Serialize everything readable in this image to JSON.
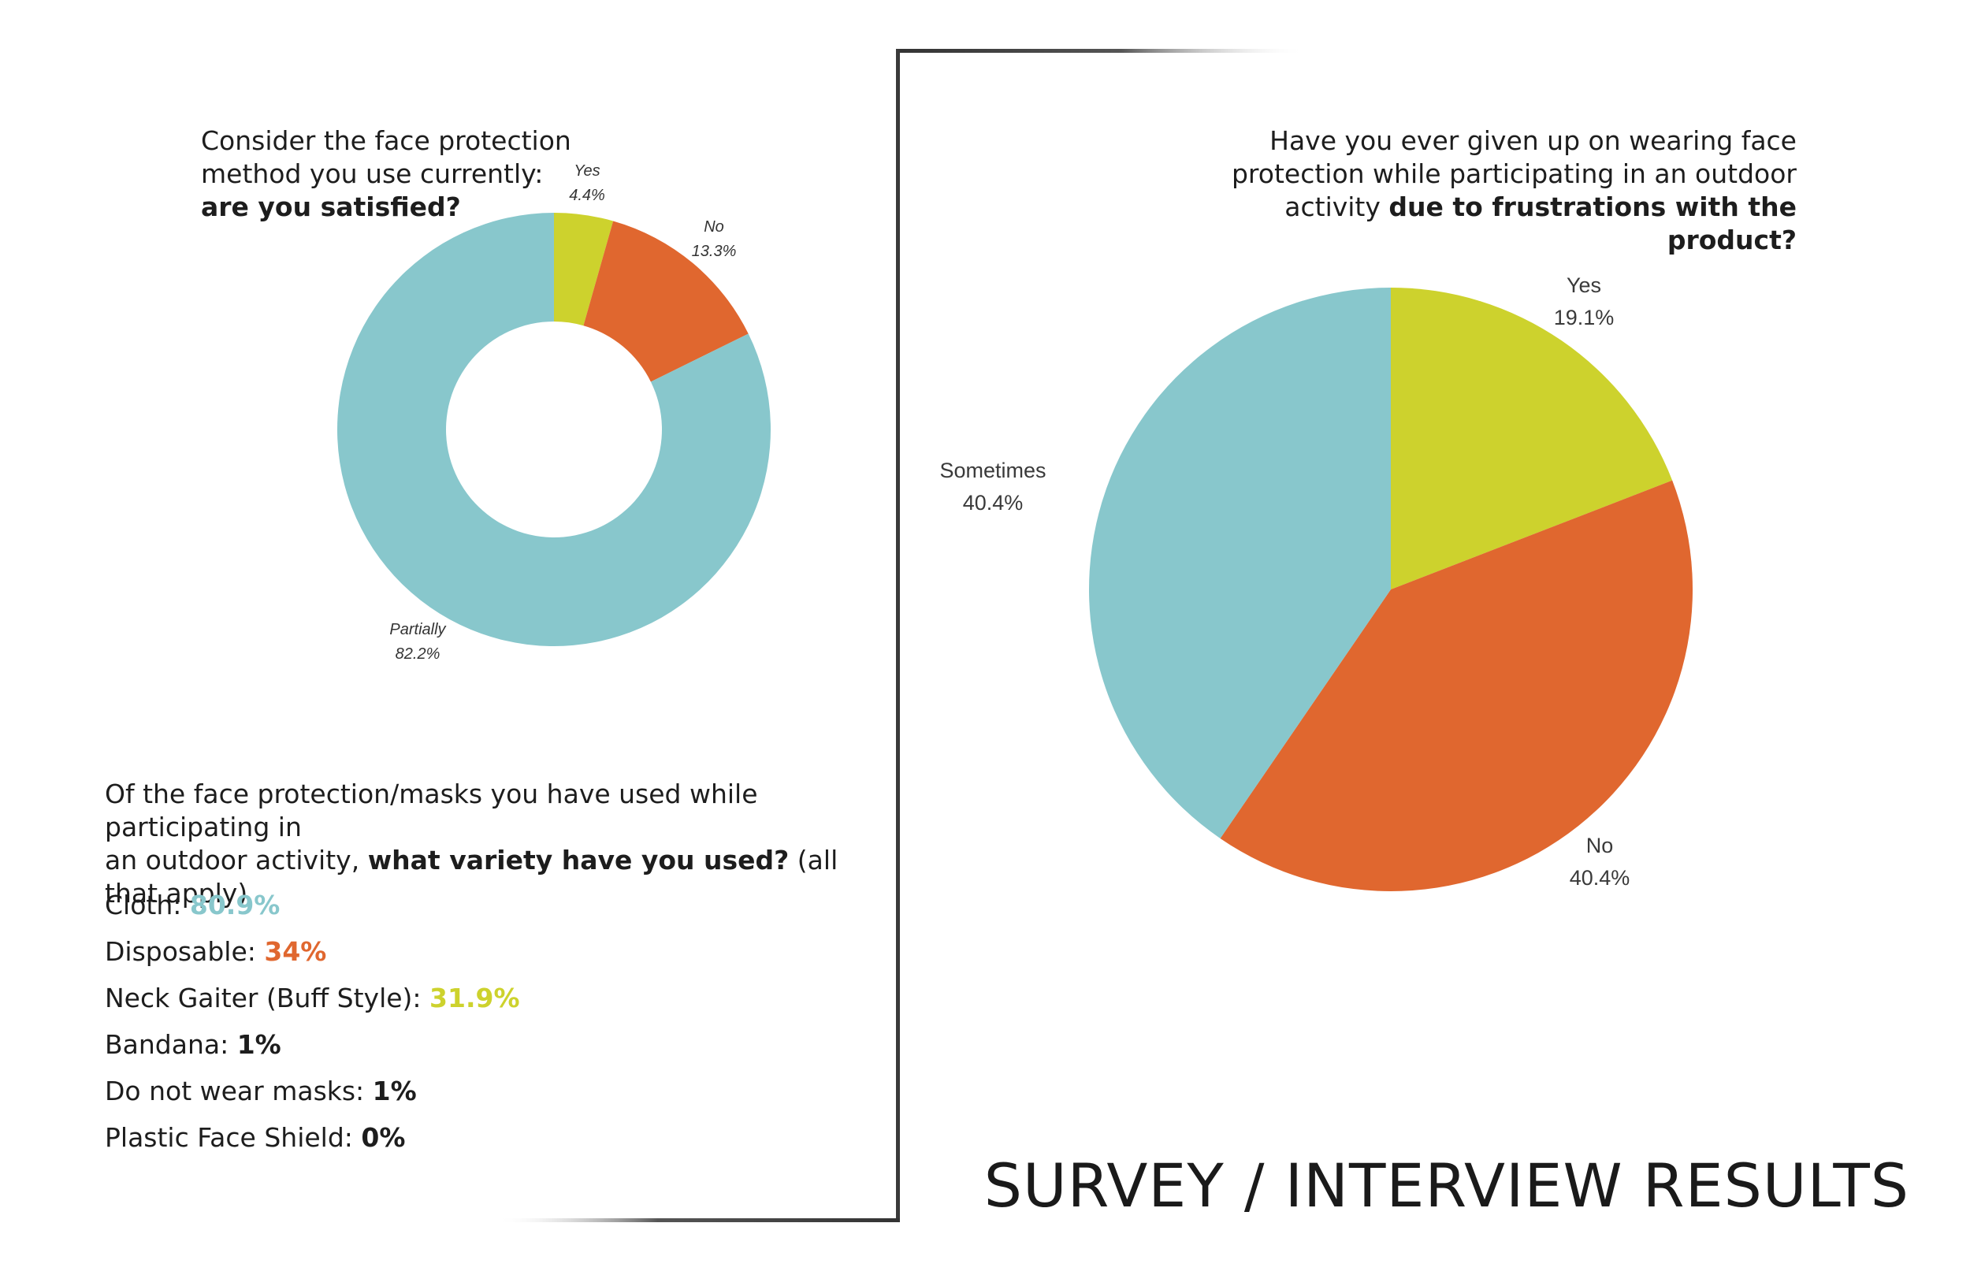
{
  "colors": {
    "teal": "#88c7cc",
    "orange": "#e0672f",
    "yellow": "#cdd22d",
    "text": "#1d1d1d"
  },
  "chart_data": [
    {
      "type": "pie",
      "variant": "donut",
      "title": {
        "line1": "Consider the face protection",
        "line2": "method you use currently:",
        "line3": "are you satisfied?"
      },
      "slices": [
        {
          "label": "Yes",
          "value": 4.4,
          "display": "4.4%"
        },
        {
          "label": "No",
          "value": 13.3,
          "display": "13.3%"
        },
        {
          "label": "Partially",
          "value": 82.2,
          "display": "82.2%"
        }
      ]
    },
    {
      "type": "pie",
      "title": {
        "line1": "Have you ever given up on wearing face",
        "line2": "protection while participating in an outdoor",
        "line3_prefix": "activity ",
        "line3_bold": "due to frustrations with the product?"
      },
      "slices": [
        {
          "label": "Yes",
          "value": 19.1,
          "display": "19.1%"
        },
        {
          "label": "No",
          "value": 40.4,
          "display": "40.4%"
        },
        {
          "label": "Sometimes",
          "value": 40.4,
          "display": "40.4%"
        }
      ]
    }
  ],
  "variety": {
    "question": {
      "line1": "Of the face protection/masks you have used while participating in",
      "line2_prefix": "an outdoor activity, ",
      "line2_bold": "what variety have you used?",
      "line2_suffix": " (all that apply)"
    },
    "items": [
      {
        "label": "Cloth: ",
        "value": "80.9%"
      },
      {
        "label": "Disposable: ",
        "value": "34%"
      },
      {
        "label": "Neck Gaiter (Buff Style): ",
        "value": "31.9%"
      },
      {
        "label": "Bandana: ",
        "value": "1%"
      },
      {
        "label": "Do not wear masks: ",
        "value": "1%"
      },
      {
        "label": "Plastic Face Shield: ",
        "value": "0%"
      }
    ]
  },
  "page_title": "SURVEY / INTERVIEW RESULTS"
}
